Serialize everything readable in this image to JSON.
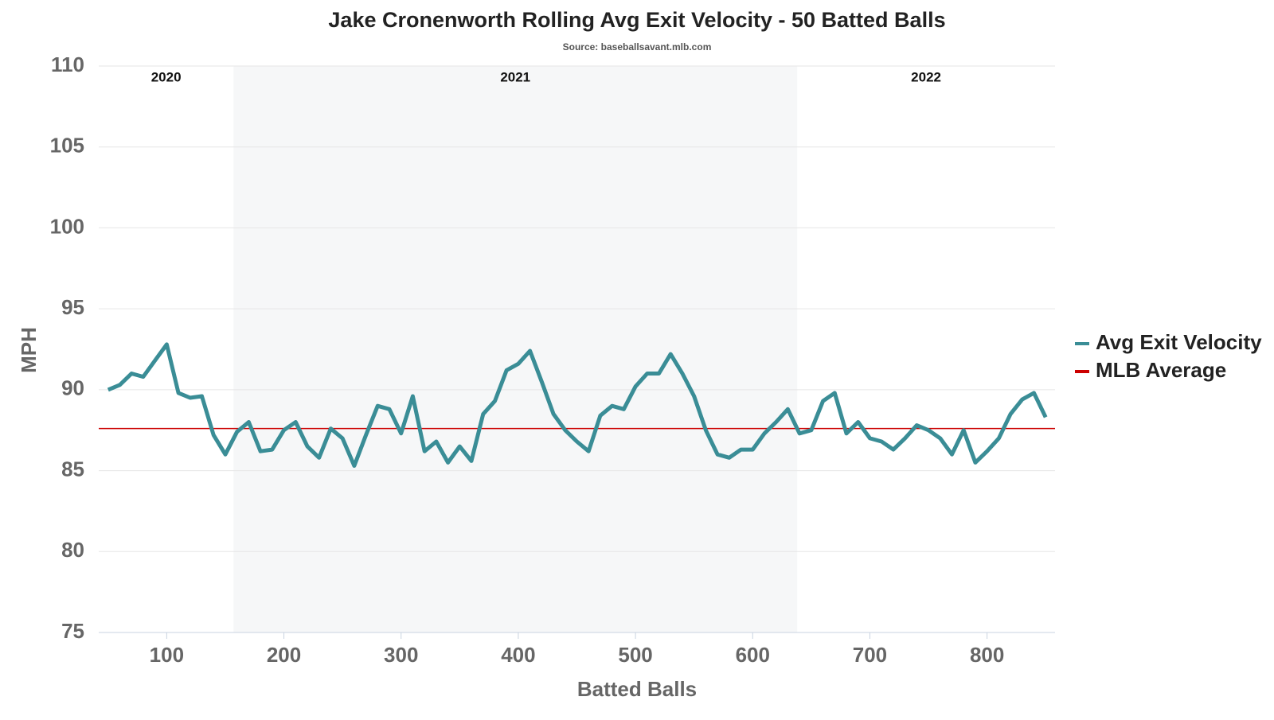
{
  "chart_data": {
    "type": "line",
    "title": "Jake Cronenworth Rolling Avg Exit Velocity - 50 Batted Balls",
    "subtitle": "Source: baseballsavant.mlb.com",
    "x_label": "Batted Balls",
    "y_label": "MPH",
    "x": [
      50,
      60,
      70,
      80,
      90,
      100,
      110,
      120,
      130,
      140,
      150,
      160,
      170,
      180,
      190,
      200,
      210,
      220,
      230,
      240,
      250,
      260,
      270,
      280,
      290,
      300,
      310,
      320,
      330,
      340,
      350,
      360,
      370,
      380,
      390,
      400,
      410,
      420,
      430,
      440,
      450,
      460,
      470,
      480,
      490,
      500,
      510,
      520,
      530,
      540,
      550,
      560,
      570,
      580,
      590,
      600,
      610,
      620,
      630,
      640,
      650,
      660,
      670,
      680,
      690,
      700,
      710,
      720,
      730,
      740,
      750,
      760,
      770,
      780,
      790,
      800,
      810,
      820,
      830,
      840,
      850
    ],
    "series": [
      {
        "name": "Avg Exit Velocity",
        "color": "#3a8d96",
        "values": [
          90.0,
          90.3,
          91.0,
          90.8,
          91.8,
          92.8,
          89.8,
          89.5,
          89.6,
          87.2,
          86.0,
          87.4,
          88.0,
          86.2,
          86.3,
          87.5,
          88.0,
          86.5,
          85.8,
          87.6,
          87.0,
          85.3,
          87.2,
          89.0,
          88.8,
          87.3,
          89.6,
          86.2,
          86.8,
          85.5,
          86.5,
          85.6,
          88.5,
          89.3,
          91.2,
          91.6,
          92.4,
          90.5,
          88.5,
          87.5,
          86.8,
          86.2,
          88.4,
          89.0,
          88.8,
          90.2,
          91.0,
          91.0,
          92.2,
          91.0,
          89.6,
          87.5,
          86.0,
          85.8,
          86.3,
          86.3,
          87.3,
          88.0,
          88.8,
          87.3,
          87.5,
          89.3,
          89.8,
          87.3,
          88.0,
          87.0,
          86.8,
          86.3,
          87.0,
          87.8,
          87.5,
          87.0,
          86.0,
          87.5,
          85.5,
          86.2,
          87.0,
          88.5,
          89.4,
          89.8,
          88.3
        ]
      }
    ],
    "reference_lines": [
      {
        "name": "MLB Average",
        "color": "#cc0000",
        "value": 87.6
      }
    ],
    "seasons": [
      {
        "label": "2020",
        "start": 42,
        "end": 157,
        "shaded": false
      },
      {
        "label": "2021",
        "start": 157,
        "end": 638,
        "shaded": true
      },
      {
        "label": "2022",
        "start": 638,
        "end": 858,
        "shaded": false
      }
    ],
    "xlim": [
      42,
      858
    ],
    "ylim": [
      75,
      110
    ],
    "xticks": [
      100,
      200,
      300,
      400,
      500,
      600,
      700,
      800
    ],
    "yticks": [
      75,
      80,
      85,
      90,
      95,
      100,
      105,
      110
    ],
    "grid": true,
    "legend": "right"
  }
}
